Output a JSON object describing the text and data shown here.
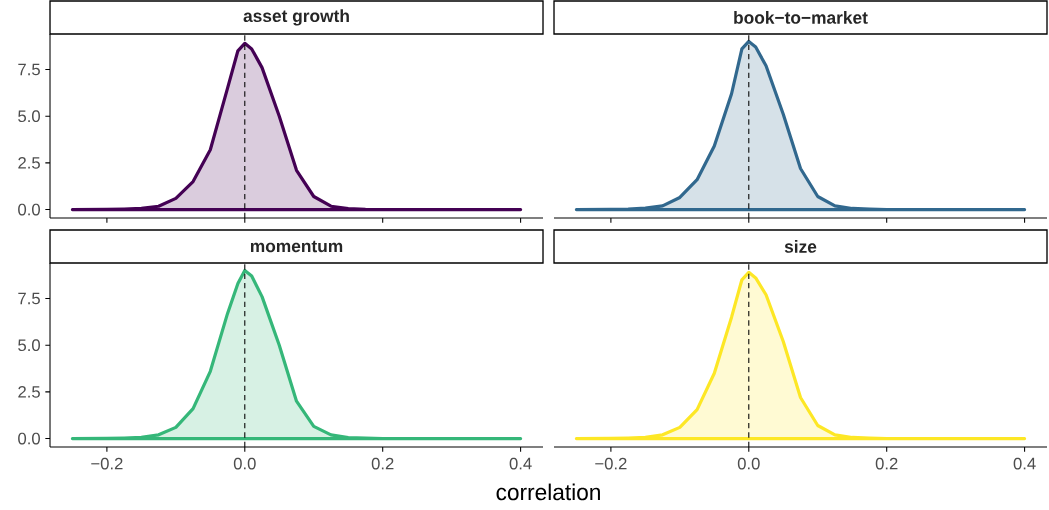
{
  "chart_data": [
    {
      "type": "area",
      "title": "asset growth",
      "color": "#440154",
      "tick_labels": "y",
      "xlim": [
        -0.2825,
        0.4325
      ],
      "ylim": [
        -0.45,
        9.4
      ],
      "xticks": [
        {
          "value": -0.2,
          "label": null
        },
        {
          "value": 0,
          "label": null
        },
        {
          "value": 0.2,
          "label": null
        },
        {
          "value": 0.4,
          "label": null
        }
      ],
      "yticks": [
        {
          "value": 0,
          "label": "0.0"
        },
        {
          "value": 2.5,
          "label": "2.5"
        },
        {
          "value": 5,
          "label": "5.0"
        },
        {
          "value": 7.5,
          "label": "7.5"
        }
      ],
      "ref_lines": [
        {
          "axis": "x",
          "value": 0,
          "color": "#000000",
          "line_style": "dashed"
        }
      ],
      "x": [
        -0.25,
        -0.2,
        -0.175,
        -0.15,
        -0.125,
        -0.1,
        -0.075,
        -0.05,
        -0.025,
        -0.01,
        0,
        0.01,
        0.025,
        0.05,
        0.075,
        0.1,
        0.125,
        0.15,
        0.175,
        0.2,
        0.25,
        0.3,
        0.35,
        0.4
      ],
      "values": [
        0,
        0.01,
        0.03,
        0.07,
        0.18,
        0.6,
        1.5,
        3.2,
        6.5,
        8.5,
        8.9,
        8.6,
        7.6,
        5.0,
        2.1,
        0.7,
        0.18,
        0.05,
        0.01,
        0,
        0,
        0,
        0,
        0
      ]
    },
    {
      "type": "area",
      "title": "book−to−market",
      "color": "#31688e",
      "tick_labels": false,
      "xlim": [
        -0.2825,
        0.4325
      ],
      "ylim": [
        -0.45,
        9.4
      ],
      "xticks": [
        {
          "value": -0.2,
          "label": null
        },
        {
          "value": 0,
          "label": null
        },
        {
          "value": 0.2,
          "label": null
        },
        {
          "value": 0.4,
          "label": null
        }
      ],
      "yticks": [
        {
          "value": 0,
          "label": null
        },
        {
          "value": 2.5,
          "label": null
        },
        {
          "value": 5,
          "label": null
        },
        {
          "value": 7.5,
          "label": null
        }
      ],
      "ref_lines": [
        {
          "axis": "x",
          "value": 0,
          "color": "#000000",
          "line_style": "dashed"
        }
      ],
      "x": [
        -0.25,
        -0.2,
        -0.175,
        -0.15,
        -0.125,
        -0.1,
        -0.075,
        -0.05,
        -0.025,
        -0.01,
        0,
        0.01,
        0.025,
        0.05,
        0.075,
        0.1,
        0.125,
        0.15,
        0.175,
        0.2,
        0.25,
        0.3,
        0.35,
        0.4
      ],
      "values": [
        0,
        0.01,
        0.03,
        0.08,
        0.2,
        0.65,
        1.6,
        3.4,
        6.2,
        8.6,
        9.0,
        8.7,
        7.7,
        5.1,
        2.2,
        0.7,
        0.2,
        0.06,
        0.02,
        0,
        0,
        0,
        0,
        0
      ]
    },
    {
      "type": "area",
      "title": "momentum",
      "xlabel": "correlation",
      "color": "#35b779",
      "xlim": [
        -0.2825,
        0.4325
      ],
      "ylim": [
        -0.45,
        9.4
      ],
      "xticks": [
        {
          "value": -0.2,
          "label": "−0.2"
        },
        {
          "value": 0,
          "label": "0.0"
        },
        {
          "value": 0.2,
          "label": "0.2"
        },
        {
          "value": 0.4,
          "label": "0.4"
        }
      ],
      "yticks": [
        {
          "value": 0,
          "label": "0.0"
        },
        {
          "value": 2.5,
          "label": "2.5"
        },
        {
          "value": 5,
          "label": "5.0"
        },
        {
          "value": 7.5,
          "label": "7.5"
        }
      ],
      "ref_lines": [
        {
          "axis": "x",
          "value": 0,
          "color": "#000000",
          "line_style": "dashed"
        }
      ],
      "x": [
        -0.25,
        -0.2,
        -0.175,
        -0.15,
        -0.125,
        -0.1,
        -0.075,
        -0.05,
        -0.025,
        -0.01,
        0,
        0.01,
        0.025,
        0.05,
        0.075,
        0.1,
        0.125,
        0.15,
        0.175,
        0.2,
        0.25,
        0.3,
        0.35,
        0.4
      ],
      "values": [
        0,
        0.01,
        0.03,
        0.07,
        0.2,
        0.6,
        1.6,
        3.6,
        6.7,
        8.3,
        9.0,
        8.7,
        7.6,
        5.0,
        2.0,
        0.65,
        0.2,
        0.05,
        0.02,
        0,
        0,
        0,
        0,
        0
      ]
    },
    {
      "type": "area",
      "title": "size",
      "color": "#fde725",
      "tick_labels": "x",
      "xlim": [
        -0.2825,
        0.4325
      ],
      "ylim": [
        -0.45,
        9.4
      ],
      "xticks": [
        {
          "value": -0.2,
          "label": "−0.2"
        },
        {
          "value": 0,
          "label": "0.0"
        },
        {
          "value": 0.2,
          "label": "0.2"
        },
        {
          "value": 0.4,
          "label": "0.4"
        }
      ],
      "yticks": [
        {
          "value": 0,
          "label": null
        },
        {
          "value": 2.5,
          "label": null
        },
        {
          "value": 5,
          "label": null
        },
        {
          "value": 7.5,
          "label": null
        }
      ],
      "ref_lines": [
        {
          "axis": "x",
          "value": 0,
          "color": "#000000",
          "line_style": "dashed"
        }
      ],
      "x": [
        -0.25,
        -0.2,
        -0.175,
        -0.15,
        -0.125,
        -0.1,
        -0.075,
        -0.05,
        -0.025,
        -0.01,
        0,
        0.01,
        0.025,
        0.05,
        0.075,
        0.1,
        0.125,
        0.15,
        0.175,
        0.2,
        0.25,
        0.3,
        0.35,
        0.4
      ],
      "values": [
        0,
        0.01,
        0.03,
        0.07,
        0.2,
        0.6,
        1.55,
        3.5,
        6.5,
        8.5,
        8.9,
        8.6,
        7.7,
        5.2,
        2.2,
        0.7,
        0.2,
        0.06,
        0.02,
        0,
        0,
        0,
        0,
        0
      ]
    }
  ]
}
